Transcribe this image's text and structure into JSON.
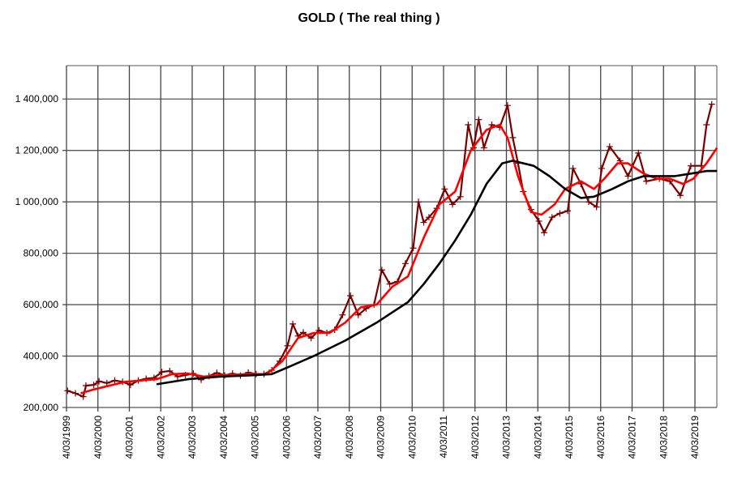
{
  "chart_data": {
    "type": "line",
    "title": "GOLD ( The real thing )",
    "xlabel": "",
    "ylabel": "",
    "ylim": [
      200000,
      1530000
    ],
    "xlim": [
      "1999-03-04",
      "2019-11-15"
    ],
    "grid": true,
    "legend": "none",
    "y_ticks": [
      "200,000",
      "400,000",
      "600,000",
      "800,000",
      "1 000,000",
      "1 200,000",
      "1 400,000"
    ],
    "y_tick_values": [
      200000,
      400000,
      600000,
      800000,
      1000000,
      1200000,
      1400000
    ],
    "x_ticks": [
      "4/03/1999",
      "4/03/2000",
      "4/03/2001",
      "4/03/2002",
      "4/03/2003",
      "4/03/2004",
      "4/03/2005",
      "4/03/2006",
      "4/03/2007",
      "4/03/2008",
      "4/03/2009",
      "4/03/2010",
      "4/03/2011",
      "4/03/2012",
      "4/03/2013",
      "4/03/2014",
      "4/03/2015",
      "4/03/2016",
      "4/03/2017",
      "4/03/2018",
      "4/03/2019"
    ],
    "series": [
      {
        "color": "#7a0000",
        "marker": "plus",
        "points": [
          [
            "1999-03",
            265000
          ],
          [
            "1999-06",
            255000
          ],
          [
            "1999-09",
            242000
          ],
          [
            "1999-10",
            285000
          ],
          [
            "2000-01",
            288000
          ],
          [
            "2000-03",
            302000
          ],
          [
            "2000-06",
            295000
          ],
          [
            "2000-09",
            305000
          ],
          [
            "2000-12",
            300000
          ],
          [
            "2001-03",
            288000
          ],
          [
            "2001-06",
            305000
          ],
          [
            "2001-09",
            312000
          ],
          [
            "2001-12",
            315000
          ],
          [
            "2002-03",
            338000
          ],
          [
            "2002-06",
            342000
          ],
          [
            "2002-09",
            320000
          ],
          [
            "2002-12",
            326000
          ],
          [
            "2003-03",
            332000
          ],
          [
            "2003-06",
            308000
          ],
          [
            "2003-09",
            322000
          ],
          [
            "2003-12",
            335000
          ],
          [
            "2004-03",
            325000
          ],
          [
            "2004-06",
            332000
          ],
          [
            "2004-09",
            324000
          ],
          [
            "2004-12",
            336000
          ],
          [
            "2005-03",
            330000
          ],
          [
            "2005-06",
            330000
          ],
          [
            "2005-09",
            345000
          ],
          [
            "2005-12",
            380000
          ],
          [
            "2006-03",
            440000
          ],
          [
            "2006-05",
            525000
          ],
          [
            "2006-07",
            478000
          ],
          [
            "2006-09",
            492000
          ],
          [
            "2006-12",
            470000
          ],
          [
            "2007-03",
            500000
          ],
          [
            "2007-06",
            490000
          ],
          [
            "2007-09",
            502000
          ],
          [
            "2007-12",
            560000
          ],
          [
            "2008-03",
            635000
          ],
          [
            "2008-06",
            560000
          ],
          [
            "2008-09",
            585000
          ],
          [
            "2008-12",
            600000
          ],
          [
            "2009-03",
            735000
          ],
          [
            "2009-06",
            680000
          ],
          [
            "2009-09",
            690000
          ],
          [
            "2009-12",
            760000
          ],
          [
            "2010-03",
            820000
          ],
          [
            "2010-05",
            1000000
          ],
          [
            "2010-07",
            920000
          ],
          [
            "2010-09",
            940000
          ],
          [
            "2010-12",
            975000
          ],
          [
            "2011-03",
            1050000
          ],
          [
            "2011-06",
            990000
          ],
          [
            "2011-09",
            1020000
          ],
          [
            "2011-12",
            1300000
          ],
          [
            "2012-02",
            1210000
          ],
          [
            "2012-04",
            1320000
          ],
          [
            "2012-06",
            1210000
          ],
          [
            "2012-09",
            1300000
          ],
          [
            "2012-12",
            1290000
          ],
          [
            "2013-03",
            1375000
          ],
          [
            "2013-05",
            1250000
          ],
          [
            "2013-07",
            1150000
          ],
          [
            "2013-09",
            1040000
          ],
          [
            "2013-12",
            970000
          ],
          [
            "2014-03",
            925000
          ],
          [
            "2014-05",
            880000
          ],
          [
            "2014-08",
            940000
          ],
          [
            "2014-11",
            955000
          ],
          [
            "2015-02",
            965000
          ],
          [
            "2015-04",
            1130000
          ],
          [
            "2015-07",
            1070000
          ],
          [
            "2015-10",
            1000000
          ],
          [
            "2016-01",
            980000
          ],
          [
            "2016-03",
            1130000
          ],
          [
            "2016-06",
            1215000
          ],
          [
            "2016-10",
            1160000
          ],
          [
            "2017-01",
            1100000
          ],
          [
            "2017-05",
            1190000
          ],
          [
            "2017-08",
            1080000
          ],
          [
            "2018-01",
            1090000
          ],
          [
            "2018-05",
            1080000
          ],
          [
            "2018-09",
            1025000
          ],
          [
            "2019-01",
            1140000
          ],
          [
            "2019-05",
            1140000
          ],
          [
            "2019-07",
            1300000
          ],
          [
            "2019-09",
            1380000
          ]
        ]
      },
      {
        "color": "#ff0000",
        "points": [
          [
            "1999-08",
            255000
          ],
          [
            "2000-01",
            270000
          ],
          [
            "2001-01",
            300000
          ],
          [
            "2002-01",
            310000
          ],
          [
            "2002-07",
            330000
          ],
          [
            "2003-01",
            332000
          ],
          [
            "2003-07",
            320000
          ],
          [
            "2004-01",
            325000
          ],
          [
            "2005-01",
            330000
          ],
          [
            "2005-07",
            330000
          ],
          [
            "2006-01",
            380000
          ],
          [
            "2006-07",
            470000
          ],
          [
            "2007-01",
            490000
          ],
          [
            "2007-07",
            490000
          ],
          [
            "2008-01",
            530000
          ],
          [
            "2008-07",
            590000
          ],
          [
            "2009-01",
            600000
          ],
          [
            "2009-07",
            670000
          ],
          [
            "2010-01",
            710000
          ],
          [
            "2010-07",
            860000
          ],
          [
            "2011-01",
            990000
          ],
          [
            "2011-07",
            1040000
          ],
          [
            "2012-01",
            1200000
          ],
          [
            "2012-07",
            1280000
          ],
          [
            "2012-12",
            1300000
          ],
          [
            "2013-03",
            1250000
          ],
          [
            "2013-07",
            1100000
          ],
          [
            "2013-12",
            960000
          ],
          [
            "2014-04",
            950000
          ],
          [
            "2014-09",
            990000
          ],
          [
            "2015-01",
            1050000
          ],
          [
            "2015-07",
            1080000
          ],
          [
            "2015-12",
            1050000
          ],
          [
            "2016-04",
            1090000
          ],
          [
            "2016-09",
            1150000
          ],
          [
            "2017-01",
            1150000
          ],
          [
            "2017-07",
            1110000
          ],
          [
            "2017-12",
            1090000
          ],
          [
            "2018-05",
            1090000
          ],
          [
            "2018-10",
            1070000
          ],
          [
            "2019-02",
            1090000
          ],
          [
            "2019-07",
            1150000
          ],
          [
            "2019-11",
            1210000
          ]
        ]
      },
      {
        "color": "#000000",
        "points": [
          [
            "2002-01",
            290000
          ],
          [
            "2003-01",
            310000
          ],
          [
            "2004-01",
            320000
          ],
          [
            "2005-01",
            325000
          ],
          [
            "2005-09",
            330000
          ],
          [
            "2006-04",
            360000
          ],
          [
            "2007-01",
            400000
          ],
          [
            "2008-01",
            460000
          ],
          [
            "2009-01",
            530000
          ],
          [
            "2010-01",
            610000
          ],
          [
            "2010-07",
            680000
          ],
          [
            "2011-01",
            760000
          ],
          [
            "2011-07",
            850000
          ],
          [
            "2012-01",
            950000
          ],
          [
            "2012-07",
            1070000
          ],
          [
            "2013-01",
            1150000
          ],
          [
            "2013-05",
            1160000
          ],
          [
            "2014-01",
            1140000
          ],
          [
            "2014-07",
            1100000
          ],
          [
            "2015-01",
            1050000
          ],
          [
            "2015-07",
            1015000
          ],
          [
            "2015-12",
            1020000
          ],
          [
            "2016-07",
            1050000
          ],
          [
            "2017-01",
            1080000
          ],
          [
            "2017-07",
            1100000
          ],
          [
            "2018-01",
            1100000
          ],
          [
            "2018-07",
            1100000
          ],
          [
            "2019-01",
            1110000
          ],
          [
            "2019-07",
            1120000
          ],
          [
            "2019-11",
            1120000
          ]
        ]
      }
    ]
  }
}
